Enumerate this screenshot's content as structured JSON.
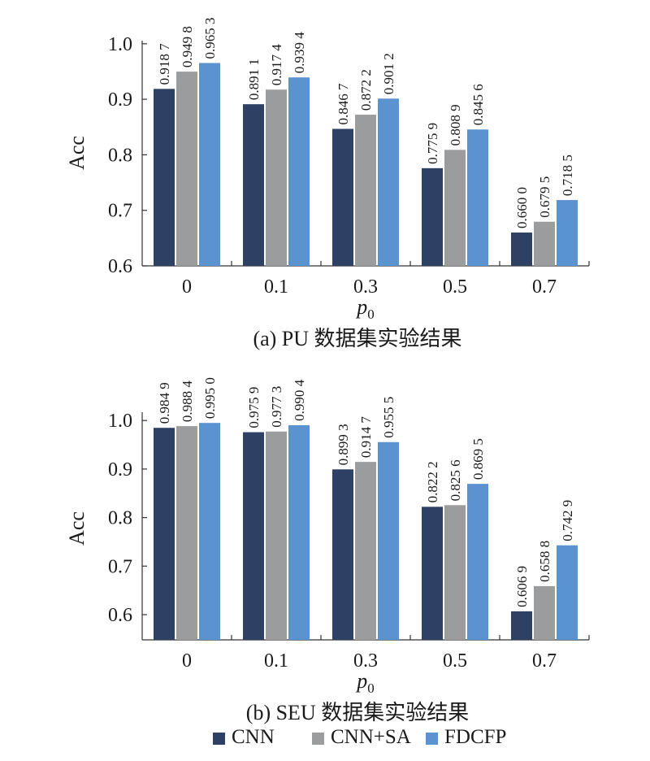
{
  "chart_data": [
    {
      "type": "bar",
      "title": "(a) PU 数据集实验结果",
      "xlabel": "p",
      "xlabel_sub": "0",
      "ylabel": "Acc",
      "ylim": [
        0.6,
        1.0
      ],
      "yticks": [
        "0.6",
        "0.7",
        "0.8",
        "0.9",
        "1.0"
      ],
      "categories": [
        "0",
        "0.1",
        "0.3",
        "0.5",
        "0.7"
      ],
      "series": [
        {
          "name": "CNN",
          "color": "#2e4063",
          "values": [
            0.9187,
            0.8911,
            0.8467,
            0.7759,
            0.66
          ],
          "labels": [
            "0.918 7",
            "0.891 1",
            "0.846 7",
            "0.775 9",
            "0.660 0"
          ]
        },
        {
          "name": "CNN+SA",
          "color": "#9b9c9e",
          "values": [
            0.9498,
            0.9174,
            0.8722,
            0.8089,
            0.6795
          ],
          "labels": [
            "0.949 8",
            "0.917 4",
            "0.872 2",
            "0.808 9",
            "0.679 5"
          ]
        },
        {
          "name": "FDCFP",
          "color": "#5b92d0",
          "values": [
            0.9653,
            0.9394,
            0.9012,
            0.8456,
            0.7185
          ],
          "labels": [
            "0.965 3",
            "0.939 4",
            "0.901 2",
            "0.845 6",
            "0.718 5"
          ]
        }
      ]
    },
    {
      "type": "bar",
      "title": "(b) SEU 数据集实验结果",
      "xlabel": "p",
      "xlabel_sub": "0",
      "ylabel": "Acc",
      "ylim": [
        0.55,
        1.0
      ],
      "yticks": [
        "0.6",
        "0.7",
        "0.8",
        "0.9",
        "1.0"
      ],
      "categories": [
        "0",
        "0.1",
        "0.3",
        "0.5",
        "0.7"
      ],
      "series": [
        {
          "name": "CNN",
          "color": "#2e4063",
          "values": [
            0.9849,
            0.9759,
            0.8993,
            0.8222,
            0.6069
          ],
          "labels": [
            "0.984 9",
            "0.975 9",
            "0.899 3",
            "0.822 2",
            "0.606 9"
          ]
        },
        {
          "name": "CNN+SA",
          "color": "#9b9c9e",
          "values": [
            0.9884,
            0.9773,
            0.9147,
            0.8256,
            0.6588
          ],
          "labels": [
            "0.988 4",
            "0.977 3",
            "0.914 7",
            "0.825 6",
            "0.658 8"
          ]
        },
        {
          "name": "FDCFP",
          "color": "#5b92d0",
          "values": [
            0.995,
            0.9904,
            0.9555,
            0.8695,
            0.7429
          ],
          "labels": [
            "0.995 0",
            "0.990 4",
            "0.955 5",
            "0.869 5",
            "0.742 9"
          ]
        }
      ]
    }
  ],
  "legend": {
    "placement": "bottom",
    "items": [
      {
        "label": "CNN",
        "color": "#2e4063"
      },
      {
        "label": "CNN+SA",
        "color": "#9b9c9e"
      },
      {
        "label": "FDCFP",
        "color": "#5b92d0"
      }
    ]
  }
}
